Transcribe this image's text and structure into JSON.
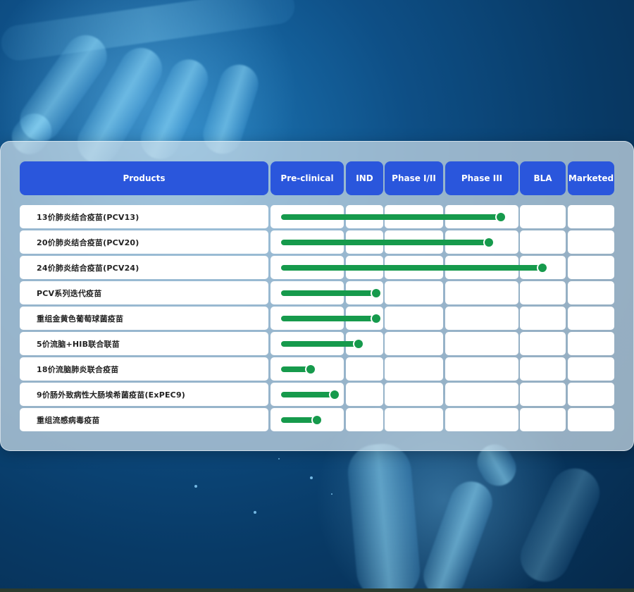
{
  "headers": {
    "products": "Products",
    "preclinical": "Pre-clinical",
    "ind": "IND",
    "phase12": "Phase I/II",
    "phase3": "Phase III",
    "bla": "BLA",
    "marketed": "Marketed"
  },
  "products": [
    {
      "name": "13价肺炎结合疫苗(PCV13)",
      "progress": 0.37
    },
    {
      "name": "20价肺炎结合疫苗(PCV20)",
      "progress": 0.35
    },
    {
      "name": "24价肺炎结合疫苗(PCV24)",
      "progress": 0.44
    },
    {
      "name": "PCV系列迭代疫苗",
      "progress": 0.16
    },
    {
      "name": "重组金黄色葡萄球菌疫苗",
      "progress": 0.16
    },
    {
      "name": "5价流脑+HIB联合联苗",
      "progress": 0.13
    },
    {
      "name": "18价流脑肺炎联合疫苗",
      "progress": 0.05
    },
    {
      "name": "9价肠外致病性大肠埃希菌疫苗(ExPEC9)",
      "progress": 0.09
    },
    {
      "name": "重组流感病毒疫苗",
      "progress": 0.06
    }
  ],
  "colors": {
    "header_bg": "#2a56dc",
    "bar": "#169a4c",
    "panel": "#cddee9"
  }
}
